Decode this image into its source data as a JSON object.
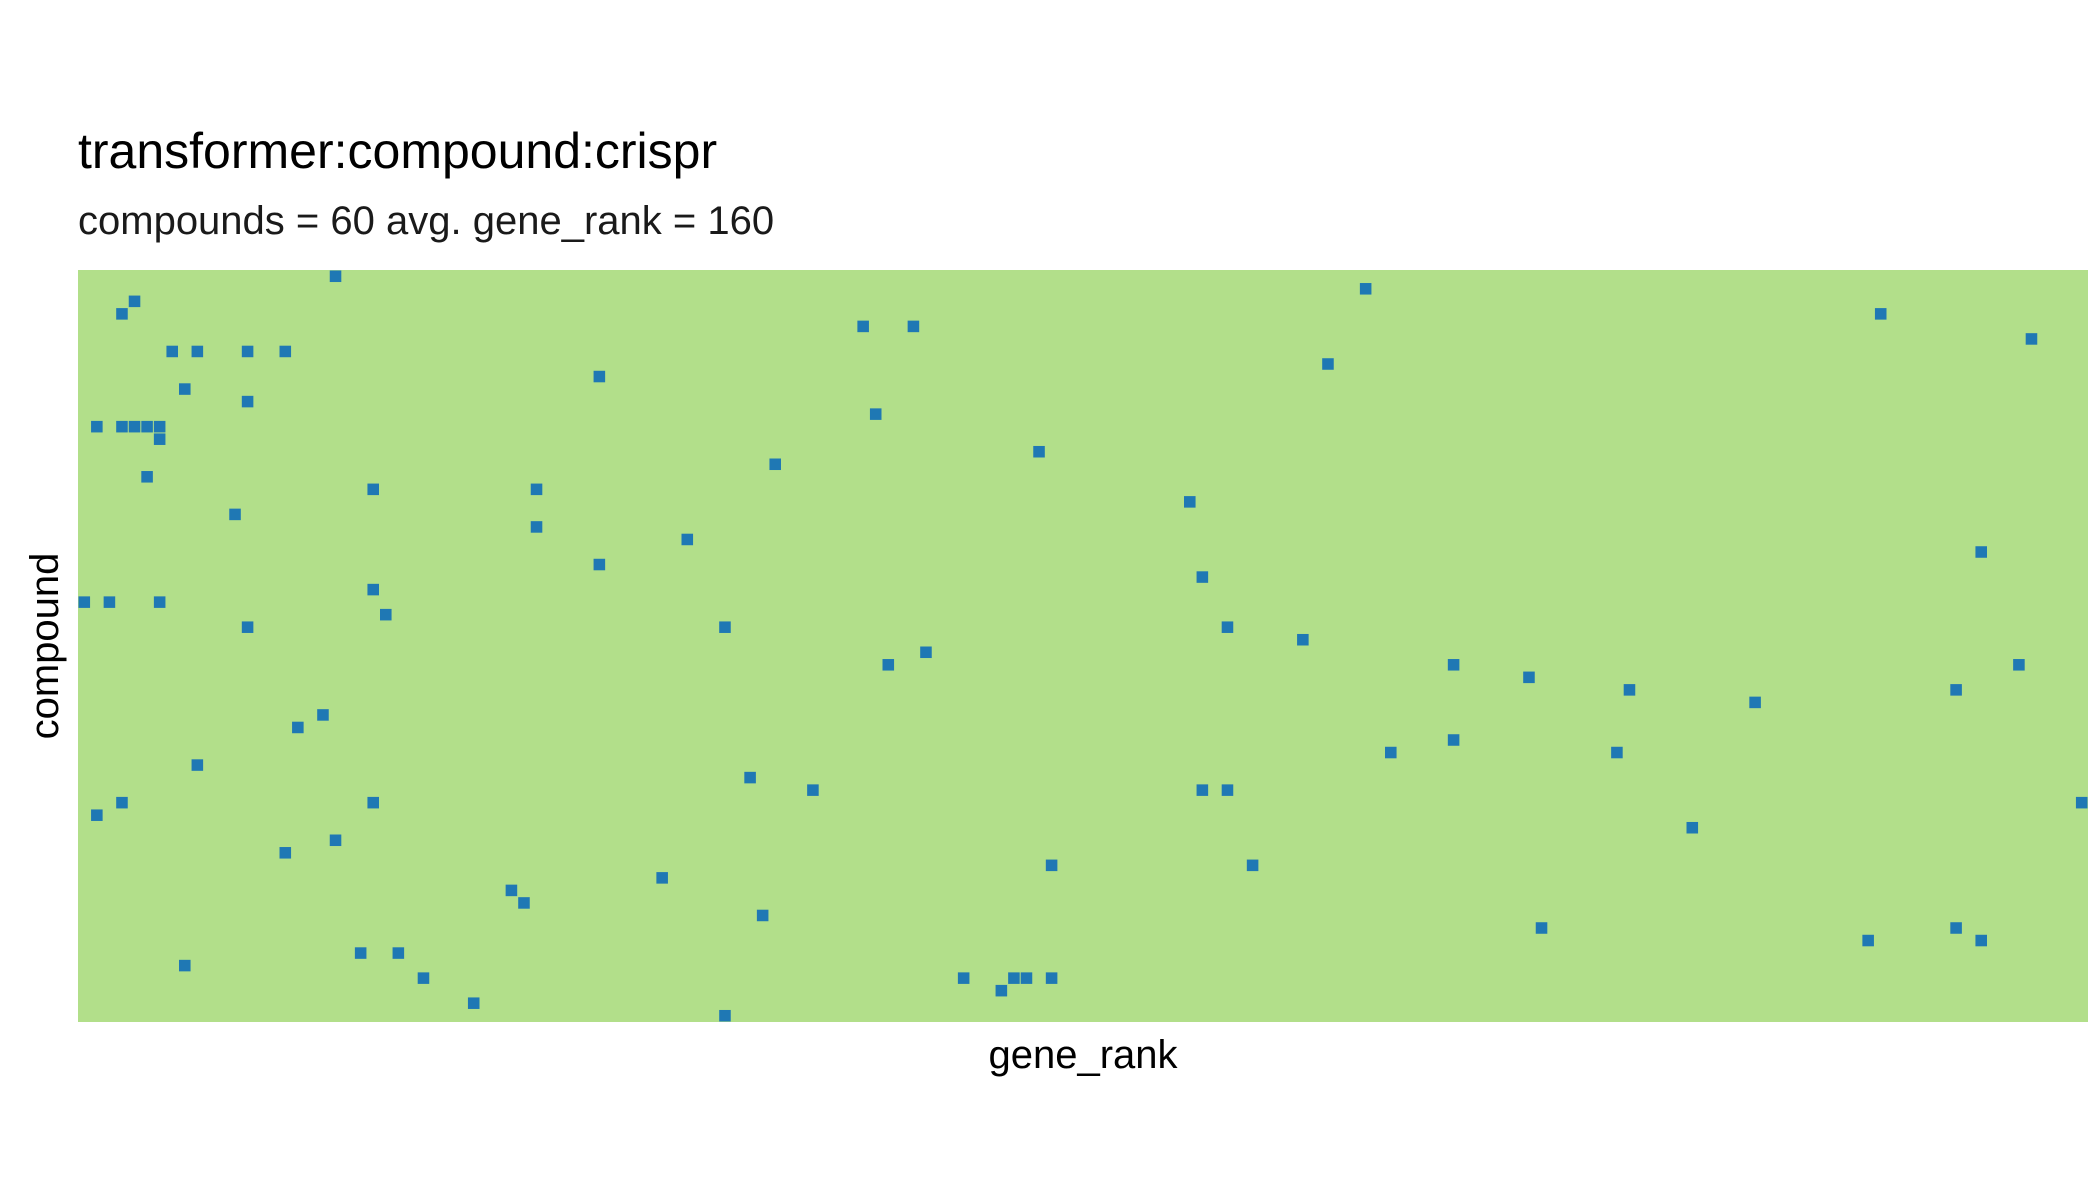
{
  "chart_data": {
    "type": "heatmap",
    "title": "transformer:compound:crispr",
    "subtitle": "compounds = 60 avg. gene_rank = 160",
    "xlabel": "gene_rank",
    "ylabel": "compound",
    "n_compounds": 60,
    "n_gene_ranks": 160,
    "xlim": [
      1,
      160
    ],
    "ylim": [
      1,
      60
    ],
    "x_ticks_shown": false,
    "y_ticks_shown": false,
    "grid": false,
    "legend": "none",
    "colors": {
      "background": "#b2df8a",
      "hit": "#1f78b4"
    },
    "cells": [
      {
        "x": 21,
        "y": 1
      },
      {
        "x": 103,
        "y": 2
      },
      {
        "x": 5,
        "y": 3
      },
      {
        "x": 4,
        "y": 4
      },
      {
        "x": 144,
        "y": 4
      },
      {
        "x": 63,
        "y": 5
      },
      {
        "x": 67,
        "y": 5
      },
      {
        "x": 156,
        "y": 6
      },
      {
        "x": 8,
        "y": 7
      },
      {
        "x": 10,
        "y": 7
      },
      {
        "x": 14,
        "y": 7
      },
      {
        "x": 17,
        "y": 7
      },
      {
        "x": 100,
        "y": 8
      },
      {
        "x": 42,
        "y": 9
      },
      {
        "x": 9,
        "y": 10
      },
      {
        "x": 14,
        "y": 11
      },
      {
        "x": 64,
        "y": 12
      },
      {
        "x": 2,
        "y": 13
      },
      {
        "x": 4,
        "y": 13
      },
      {
        "x": 5,
        "y": 13
      },
      {
        "x": 6,
        "y": 13
      },
      {
        "x": 7,
        "y": 13
      },
      {
        "x": 7,
        "y": 14
      },
      {
        "x": 77,
        "y": 15
      },
      {
        "x": 56,
        "y": 16
      },
      {
        "x": 6,
        "y": 17
      },
      {
        "x": 24,
        "y": 18
      },
      {
        "x": 37,
        "y": 18
      },
      {
        "x": 89,
        "y": 19
      },
      {
        "x": 13,
        "y": 20
      },
      {
        "x": 37,
        "y": 21
      },
      {
        "x": 49,
        "y": 22
      },
      {
        "x": 152,
        "y": 23
      },
      {
        "x": 42,
        "y": 24
      },
      {
        "x": 90,
        "y": 25
      },
      {
        "x": 24,
        "y": 26
      },
      {
        "x": 1,
        "y": 27
      },
      {
        "x": 3,
        "y": 27
      },
      {
        "x": 7,
        "y": 27
      },
      {
        "x": 25,
        "y": 28
      },
      {
        "x": 14,
        "y": 29
      },
      {
        "x": 52,
        "y": 29
      },
      {
        "x": 92,
        "y": 29
      },
      {
        "x": 98,
        "y": 30
      },
      {
        "x": 68,
        "y": 31
      },
      {
        "x": 65,
        "y": 32
      },
      {
        "x": 110,
        "y": 32
      },
      {
        "x": 155,
        "y": 32
      },
      {
        "x": 116,
        "y": 33
      },
      {
        "x": 124,
        "y": 34
      },
      {
        "x": 150,
        "y": 34
      },
      {
        "x": 134,
        "y": 35
      },
      {
        "x": 20,
        "y": 36
      },
      {
        "x": 18,
        "y": 37
      },
      {
        "x": 110,
        "y": 38
      },
      {
        "x": 105,
        "y": 39
      },
      {
        "x": 123,
        "y": 39
      },
      {
        "x": 10,
        "y": 40
      },
      {
        "x": 54,
        "y": 41
      },
      {
        "x": 59,
        "y": 42
      },
      {
        "x": 90,
        "y": 42
      },
      {
        "x": 92,
        "y": 42
      },
      {
        "x": 4,
        "y": 43
      },
      {
        "x": 24,
        "y": 43
      },
      {
        "x": 160,
        "y": 43
      },
      {
        "x": 2,
        "y": 44
      },
      {
        "x": 129,
        "y": 45
      },
      {
        "x": 21,
        "y": 46
      },
      {
        "x": 17,
        "y": 47
      },
      {
        "x": 78,
        "y": 48
      },
      {
        "x": 94,
        "y": 48
      },
      {
        "x": 47,
        "y": 49
      },
      {
        "x": 35,
        "y": 50
      },
      {
        "x": 36,
        "y": 51
      },
      {
        "x": 55,
        "y": 52
      },
      {
        "x": 117,
        "y": 53
      },
      {
        "x": 150,
        "y": 53
      },
      {
        "x": 143,
        "y": 54
      },
      {
        "x": 152,
        "y": 54
      },
      {
        "x": 23,
        "y": 55
      },
      {
        "x": 26,
        "y": 55
      },
      {
        "x": 9,
        "y": 56
      },
      {
        "x": 28,
        "y": 57
      },
      {
        "x": 71,
        "y": 57
      },
      {
        "x": 75,
        "y": 57
      },
      {
        "x": 76,
        "y": 57
      },
      {
        "x": 78,
        "y": 57
      },
      {
        "x": 74,
        "y": 58
      },
      {
        "x": 32,
        "y": 59
      },
      {
        "x": 52,
        "y": 60
      }
    ]
  }
}
